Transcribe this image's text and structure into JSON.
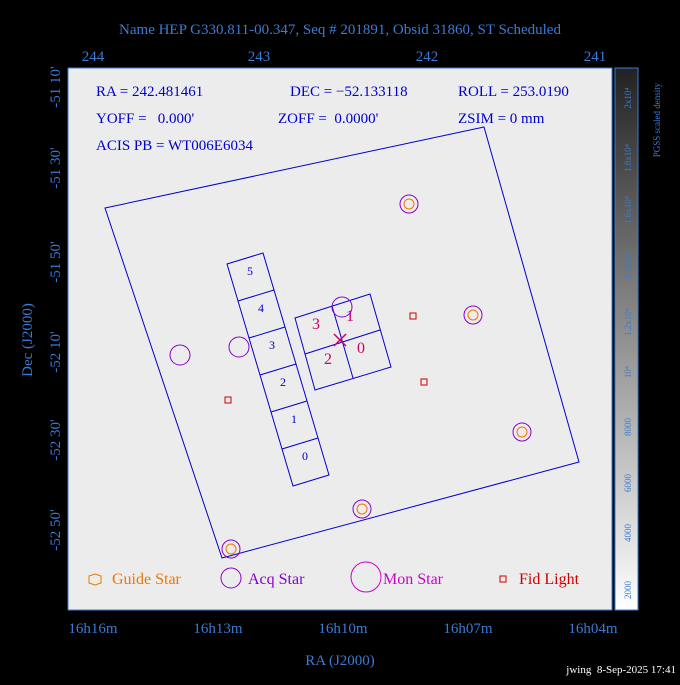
{
  "title": "Name HEP G330.811-00.347, Seq # 201891, Obsid 31860, ST Scheduled",
  "top_ticks": [
    "244",
    "243",
    "242",
    "241"
  ],
  "left_ticks": [
    "-51 10'",
    "-51 30'",
    "-51 50'",
    "-52 10'",
    "-52 30'",
    "-52 50'"
  ],
  "bottom_ticks": [
    "16h16m",
    "16h13m",
    "16h10m",
    "16h07m",
    "16h04m"
  ],
  "x_label": "RA (J2000)",
  "y_label": "Dec (J2000)",
  "info": {
    "ra": "RA = 242.481461",
    "dec": "DEC = −52.133118",
    "roll": "ROLL = 253.0190",
    "yoff": "YOFF =   0.000'",
    "zoff": "ZOFF =  0.0000'",
    "zsim": "ZSIM = 0 mm",
    "acis": "ACIS PB = WT006E6034"
  },
  "chips_s": [
    "5",
    "4",
    "3",
    "2",
    "1",
    "0"
  ],
  "chips_i": [
    "3",
    "1",
    "2",
    "0"
  ],
  "legend": [
    "Guide Star",
    "Acq Star",
    "Mon Star",
    "Fid Light"
  ],
  "colorbar": {
    "label": "PGSS scaled density",
    "ticks": [
      "2000",
      "4000",
      "6000",
      "8000",
      "10⁴",
      "1.2x10⁴",
      "1.4x10⁴",
      "1.6x10⁴",
      "1.8x10⁴",
      "2x10⁴"
    ]
  },
  "footer": "jwing  8-Sep-2025 17:41"
}
